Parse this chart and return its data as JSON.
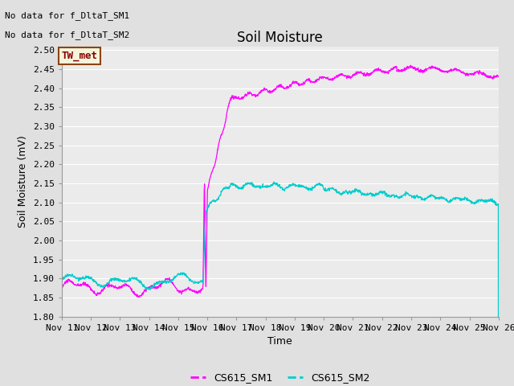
{
  "title": "Soil Moisture",
  "ylabel": "Soil Moisture (mV)",
  "xlabel": "Time",
  "no_data_text": [
    "No data for f_DltaT_SM1",
    "No data for f_DltaT_SM2"
  ],
  "tw_met_label": "TW_met",
  "legend_labels": [
    "CS615_SM1",
    "CS615_SM2"
  ],
  "sm1_color": "#FF00FF",
  "sm2_color": "#00CCCC",
  "ylim": [
    1.8,
    2.5
  ],
  "yticks": [
    1.8,
    1.85,
    1.9,
    1.95,
    2.0,
    2.05,
    2.1,
    2.15,
    2.2,
    2.25,
    2.3,
    2.35,
    2.4,
    2.45,
    2.5
  ],
  "fig_bg_color": "#E0E0E0",
  "plot_bg_color": "#EBEBEB",
  "grid_color": "#FFFFFF",
  "title_fontsize": 12,
  "axis_label_fontsize": 9,
  "tick_fontsize": 8,
  "tw_met_fg": "#8B0000",
  "tw_met_bg": "#F5F5DC",
  "tw_met_border": "#8B4513"
}
